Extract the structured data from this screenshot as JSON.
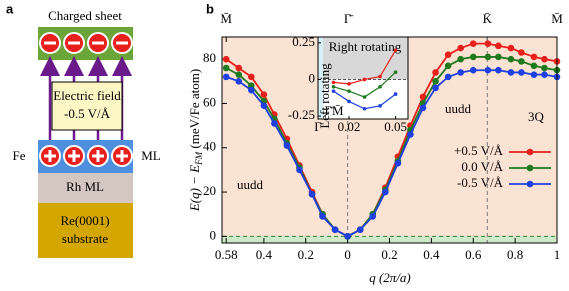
{
  "panel_a": {
    "label": "a",
    "top": "Charged sheet",
    "field_1": "Electric field",
    "field_2": "-0.5 V/Å",
    "fe": "Fe",
    "ml": "ML",
    "rh": "Rh ML",
    "substrate_1": "Re(0001)",
    "substrate_2": "substrate"
  },
  "chart_data": [
    {
      "type": "line",
      "panel_label": "b",
      "xlabel": "q (2π/a)",
      "ylabel": "E(q) − E",
      "ylabel_sub": "FM",
      "ylabel_unit": " (meV/Fe atom)",
      "x": [
        -0.58,
        -0.52,
        -0.46,
        -0.4,
        -0.35,
        -0.29,
        -0.23,
        -0.17,
        -0.12,
        -0.06,
        0,
        0.06,
        0.12,
        0.18,
        0.24,
        0.3,
        0.36,
        0.42,
        0.48,
        0.54,
        0.6,
        0.67,
        0.72,
        0.78,
        0.83,
        0.89,
        0.94,
        1.0
      ],
      "series": [
        {
          "name": "+0.5 V/Å",
          "color": "#e8201c",
          "values": [
            80,
            76,
            72,
            64,
            55,
            44,
            32,
            20,
            10,
            3,
            0,
            3,
            10,
            22,
            36,
            50,
            63,
            74,
            82,
            85,
            87,
            87,
            86,
            85,
            83,
            81,
            80,
            79
          ]
        },
        {
          "name": "0.0 V/Å",
          "color": "#1f7a1f",
          "values": [
            76,
            73,
            68,
            61,
            53,
            42,
            31,
            19,
            10,
            3,
            0,
            3,
            10,
            21,
            34,
            48,
            60,
            70,
            77,
            80,
            81,
            81,
            81,
            80,
            79,
            77,
            76,
            75
          ]
        },
        {
          "name": "-0.5 V/Å",
          "color": "#1f3fe0",
          "values": [
            72,
            70,
            66,
            59,
            51,
            41,
            30,
            19,
            9,
            3,
            0,
            3,
            9,
            20,
            33,
            46,
            58,
            67,
            72,
            74,
            75,
            75,
            75,
            74,
            74,
            73,
            73,
            72
          ]
        }
      ],
      "xlim": [
        -0.6,
        1.0
      ],
      "xticks": [
        {
          "value": -0.58,
          "label": "0.58"
        },
        {
          "value": -0.4,
          "label": "0.4"
        },
        {
          "value": -0.2,
          "label": "0.2"
        },
        0,
        0.2,
        0.4,
        0.6,
        0.8,
        1
      ],
      "top_ticks": [
        {
          "value": -0.58,
          "label": "M̄"
        },
        {
          "value": 0,
          "label": "Γ̄"
        },
        {
          "value": 0.667,
          "label": "K̄"
        },
        {
          "value": 1.0,
          "label": "M̄"
        }
      ],
      "ylim": [
        -3,
        90
      ],
      "yticks": [
        0,
        20,
        40,
        60,
        80
      ],
      "legend": "lower right",
      "annotations": [
        "uudd",
        "uudd",
        "3Q"
      ]
    },
    {
      "type": "scatter-line",
      "xlabel": "Γ̄M̄",
      "text_right": "Right rotating",
      "text_left": "Left rotating",
      "x": [
        0.01,
        0.02,
        0.03,
        0.04,
        0.05
      ],
      "series": [
        {
          "name": "+0.5 V/Å",
          "color": "#e8201c",
          "values": [
            -0.02,
            -0.03,
            0.0,
            0.02,
            0.2
          ]
        },
        {
          "name": "0.0 V/Å",
          "color": "#1f7a1f",
          "values": [
            -0.05,
            -0.08,
            -0.12,
            -0.05,
            0.05
          ]
        },
        {
          "name": "-0.5 V/Å",
          "color": "#1f3fe0",
          "values": [
            -0.08,
            -0.15,
            -0.2,
            -0.18,
            -0.1
          ]
        }
      ],
      "xlim": [
        0,
        0.058
      ],
      "xticks": [
        {
          "value": 0,
          "label": "Γ̄"
        },
        0.02,
        0.05
      ],
      "ylim": [
        -0.27,
        0.29
      ],
      "yticks": [
        0.25,
        0,
        -0.25
      ]
    }
  ]
}
